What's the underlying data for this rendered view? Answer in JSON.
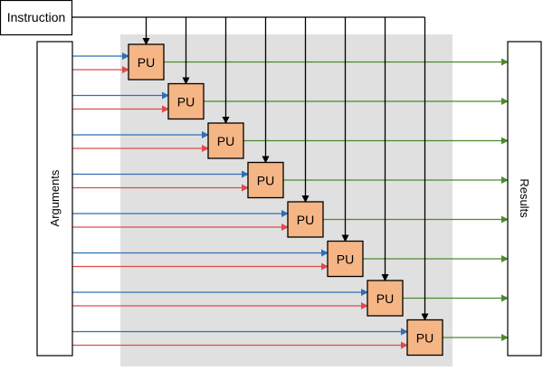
{
  "instruction_label": "Instruction",
  "arguments_label": "Arguments",
  "results_label": "Results",
  "pu_label": "PU",
  "pu_count": 8,
  "colors": {
    "pu_fill": "#f5b585",
    "background_region": "#e0e0e0",
    "input_a": "#2f6fb5",
    "input_b": "#e04a4a",
    "output": "#4a8a2e",
    "control": "#000000"
  }
}
